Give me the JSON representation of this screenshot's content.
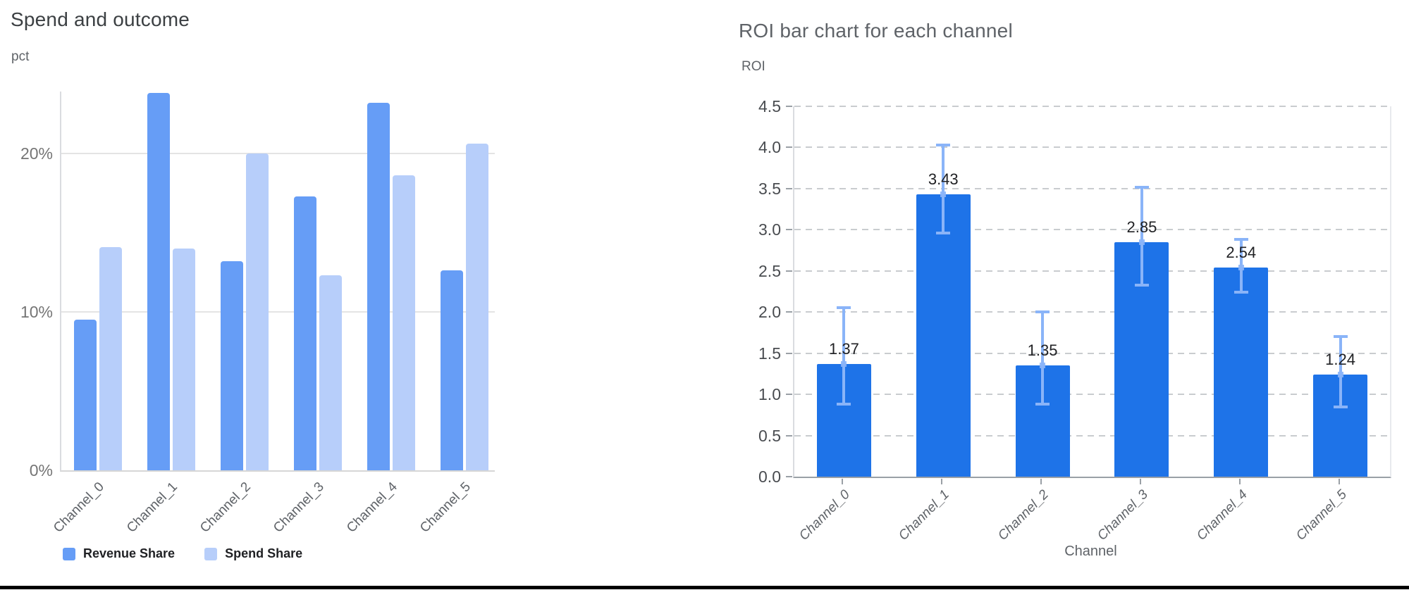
{
  "page": {
    "background": "#ffffff",
    "bottom_border_color": "#000000"
  },
  "chart_data": [
    {
      "type": "bar",
      "variant": "grouped",
      "title": "Spend and outcome",
      "y_unit": "pct",
      "categories": [
        "Channel_0",
        "Channel_1",
        "Channel_2",
        "Channel_3",
        "Channel_4",
        "Channel_5"
      ],
      "series": [
        {
          "name": "Revenue Share",
          "color": "#669df6",
          "values": [
            9.5,
            23.8,
            13.2,
            17.3,
            23.2,
            12.6
          ]
        },
        {
          "name": "Spend Share",
          "color": "#b7cefa",
          "values": [
            14.1,
            14.0,
            20.0,
            12.3,
            18.6,
            20.6
          ]
        }
      ],
      "yticks": [
        {
          "value": 0,
          "label": "0%"
        },
        {
          "value": 10,
          "label": "10%"
        },
        {
          "value": 20,
          "label": "20%"
        }
      ],
      "ylim": [
        0,
        23.9
      ],
      "grid": "solid",
      "legend_position": "bottom"
    },
    {
      "type": "bar",
      "title": "ROI bar chart for each channel",
      "ylabel": "ROI",
      "xlabel": "Channel",
      "categories": [
        "Channel_0",
        "Channel_1",
        "Channel_2",
        "Channel_3",
        "Channel_4",
        "Channel_5"
      ],
      "values": [
        1.37,
        3.43,
        1.35,
        2.85,
        2.54,
        1.24
      ],
      "bar_labels": [
        "1.37",
        "3.43",
        "1.35",
        "2.85",
        "2.54",
        "1.24"
      ],
      "error_low": [
        0.88,
        2.96,
        0.88,
        2.33,
        2.24,
        0.85
      ],
      "error_high": [
        2.05,
        4.03,
        2.0,
        3.52,
        2.88,
        1.7
      ],
      "bar_color": "#1e73e8",
      "error_color": "#8ab4f8",
      "yticks": [
        {
          "value": 0.0,
          "label": "0.0"
        },
        {
          "value": 0.5,
          "label": "0.5"
        },
        {
          "value": 1.0,
          "label": "1.0"
        },
        {
          "value": 1.5,
          "label": "1.5"
        },
        {
          "value": 2.0,
          "label": "2.0"
        },
        {
          "value": 2.5,
          "label": "2.5"
        },
        {
          "value": 3.0,
          "label": "3.0"
        },
        {
          "value": 3.5,
          "label": "3.5"
        },
        {
          "value": 4.0,
          "label": "4.0"
        },
        {
          "value": 4.5,
          "label": "4.5"
        }
      ],
      "ylim": [
        0,
        4.5
      ],
      "grid": "dashed"
    }
  ]
}
